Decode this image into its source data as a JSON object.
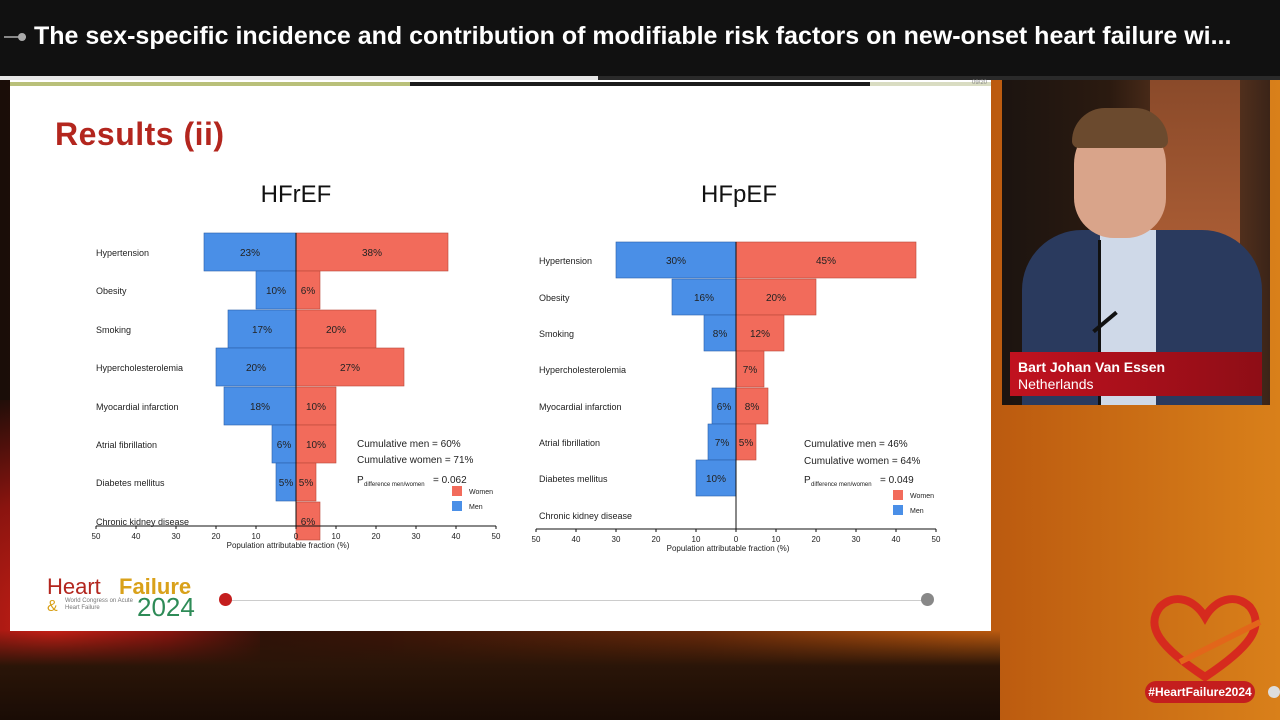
{
  "video": {
    "title": "The sex-specific incidence and contribution of modifiable risk factors on new-onset heart failure wi...",
    "progress_fraction": 0.467
  },
  "slide": {
    "title": "Results (ii)",
    "pager": "09/20",
    "logo": {
      "heart": "Heart",
      "failure": "Failure",
      "amp": "&",
      "congress": "World Congress on Acute Heart Failure",
      "year": "2024"
    }
  },
  "speaker": {
    "name": "Bart Johan Van Essen",
    "country": "Netherlands"
  },
  "hashtag": "#HeartFailure2024",
  "colors": {
    "women": "#f26b5b",
    "men": "#4a8fe7",
    "title_red": "#b3261e",
    "brand_red": "#c41e1e"
  },
  "chart_data": [
    {
      "type": "bar",
      "title": "HFrEF",
      "xlabel": "Population attributable fraction (%)",
      "xlim": [
        -50,
        50
      ],
      "ticks": [
        50,
        40,
        30,
        20,
        10,
        0,
        10,
        20,
        30,
        40,
        50
      ],
      "categories": [
        "Hypertension",
        "Obesity",
        "Smoking",
        "Hypercholesterolemia",
        "Myocardial infarction",
        "Atrial fibrillation",
        "Diabetes mellitus",
        "Chronic kidney disease"
      ],
      "series": [
        {
          "name": "Men",
          "values": [
            23,
            10,
            17,
            20,
            18,
            6,
            5,
            null
          ]
        },
        {
          "name": "Women",
          "values": [
            38,
            6,
            20,
            27,
            10,
            10,
            5,
            6
          ]
        }
      ],
      "annotations": [
        "Cumulative men   = 60%",
        "Cumulative women = 71%",
        "= 0.062"
      ],
      "p_label": "P",
      "p_subscript": "difference men/women",
      "legend": [
        "Women",
        "Men"
      ],
      "legend_position": "bottom-right"
    },
    {
      "type": "bar",
      "title": "HFpEF",
      "xlabel": "Population attributable fraction (%)",
      "xlim": [
        -50,
        50
      ],
      "ticks": [
        50,
        40,
        30,
        20,
        10,
        0,
        10,
        20,
        30,
        40,
        50
      ],
      "categories": [
        "Hypertension",
        "Obesity",
        "Smoking",
        "Hypercholesterolemia",
        "Myocardial infarction",
        "Atrial fibrillation",
        "Diabetes mellitus",
        "Chronic kidney disease"
      ],
      "series": [
        {
          "name": "Men",
          "values": [
            30,
            16,
            8,
            null,
            6,
            7,
            10,
            null
          ]
        },
        {
          "name": "Women",
          "values": [
            45,
            20,
            12,
            7,
            8,
            5,
            null,
            null
          ]
        }
      ],
      "annotations": [
        "Cumulative men = 46%",
        "Cumulative women = 64%",
        "= 0.049"
      ],
      "p_label": "P",
      "p_subscript": "difference men/women",
      "legend": [
        "Women",
        "Men"
      ],
      "legend_position": "bottom-right"
    }
  ]
}
